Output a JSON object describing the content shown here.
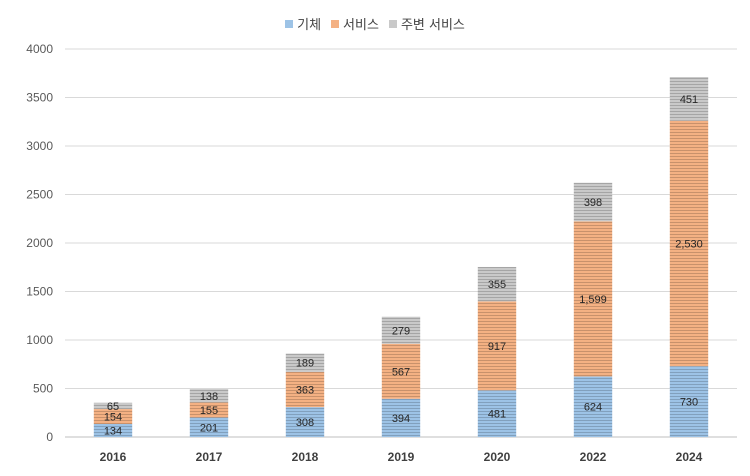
{
  "chart_data": {
    "type": "bar",
    "stacked": true,
    "categories": [
      "2016",
      "2017",
      "2018",
      "2019",
      "2020",
      "2022",
      "2024"
    ],
    "series": [
      {
        "name": "기체",
        "color": "#9dc3e6",
        "values": [
          134,
          201,
          308,
          394,
          481,
          624,
          730
        ],
        "labels": [
          "134",
          "201",
          "308",
          "394",
          "481",
          "624",
          "730"
        ]
      },
      {
        "name": "서비스",
        "color": "#f4b183",
        "values": [
          154,
          155,
          363,
          567,
          917,
          1599,
          2530
        ],
        "labels": [
          "154",
          "155",
          "363",
          "567",
          "917",
          "1,599",
          "2,530"
        ]
      },
      {
        "name": "주변 서비스",
        "color": "#c9c9c9",
        "values": [
          65,
          138,
          189,
          279,
          355,
          398,
          451
        ],
        "labels": [
          "65",
          "138",
          "189",
          "279",
          "355",
          "398",
          "451"
        ]
      }
    ],
    "ylim": [
      0,
      4000
    ],
    "yticks": [
      0,
      500,
      1000,
      1500,
      2000,
      2500,
      3000,
      3500,
      4000
    ],
    "grid": true,
    "legend": "top-center"
  }
}
